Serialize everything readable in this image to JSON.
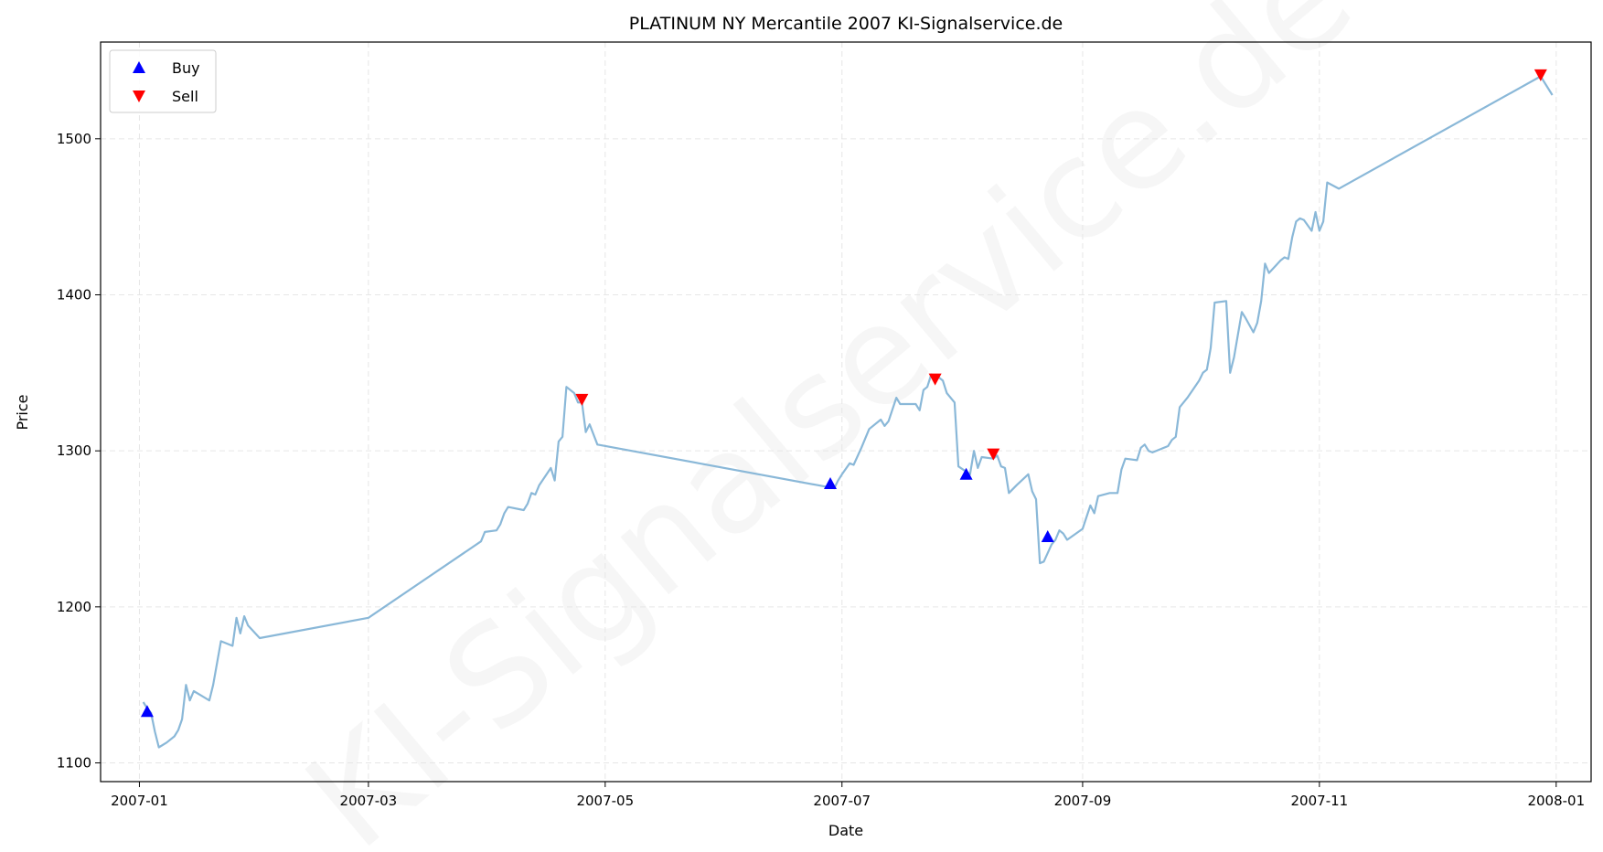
{
  "chart_data": {
    "type": "line",
    "title": "PLATINUM NY Mercantile 2007 KI-Signalservice.de",
    "xlabel": "Date",
    "ylabel": "Price",
    "watermark": "KI-Signalservice.de",
    "x_range": [
      "2006-12-22",
      "2008-01-10"
    ],
    "ylim": [
      1088,
      1562
    ],
    "x_ticks": [
      {
        "date": "2007-01-01",
        "label": "2007-01"
      },
      {
        "date": "2007-03-01",
        "label": "2007-03"
      },
      {
        "date": "2007-05-01",
        "label": "2007-05"
      },
      {
        "date": "2007-07-01",
        "label": "2007-07"
      },
      {
        "date": "2007-09-01",
        "label": "2007-09"
      },
      {
        "date": "2007-11-01",
        "label": "2007-11"
      },
      {
        "date": "2008-01-01",
        "label": "2008-01"
      }
    ],
    "y_ticks": [
      1100,
      1200,
      1300,
      1400,
      1500
    ],
    "grid": true,
    "legend": {
      "position": "top-left",
      "entries": [
        "Buy",
        "Sell"
      ]
    },
    "colors": {
      "line": "#8ab8d8",
      "buy": "#0000ff",
      "sell": "#ff0000",
      "grid": "#e6e6e6"
    },
    "series": [
      {
        "name": "Price",
        "points": [
          [
            "2007-01-02",
            1139
          ],
          [
            "2007-01-03",
            1135
          ],
          [
            "2007-01-04",
            1132
          ],
          [
            "2007-01-05",
            1120
          ],
          [
            "2007-01-06",
            1110
          ],
          [
            "2007-01-08",
            1113
          ],
          [
            "2007-01-10",
            1117
          ],
          [
            "2007-01-11",
            1121
          ],
          [
            "2007-01-12",
            1128
          ],
          [
            "2007-01-13",
            1150
          ],
          [
            "2007-01-14",
            1140
          ],
          [
            "2007-01-15",
            1146
          ],
          [
            "2007-01-17",
            1143
          ],
          [
            "2007-01-19",
            1140
          ],
          [
            "2007-01-20",
            1150
          ],
          [
            "2007-01-22",
            1178
          ],
          [
            "2007-01-25",
            1175
          ],
          [
            "2007-01-26",
            1193
          ],
          [
            "2007-01-27",
            1183
          ],
          [
            "2007-01-28",
            1194
          ],
          [
            "2007-01-29",
            1188
          ],
          [
            "2007-02-01",
            1180
          ],
          [
            "2007-03-01",
            1193
          ],
          [
            "2007-03-30",
            1242
          ],
          [
            "2007-03-31",
            1248
          ],
          [
            "2007-04-03",
            1249
          ],
          [
            "2007-04-04",
            1253
          ],
          [
            "2007-04-05",
            1260
          ],
          [
            "2007-04-06",
            1264
          ],
          [
            "2007-04-10",
            1262
          ],
          [
            "2007-04-11",
            1266
          ],
          [
            "2007-04-12",
            1273
          ],
          [
            "2007-04-13",
            1272
          ],
          [
            "2007-04-14",
            1278
          ],
          [
            "2007-04-17",
            1289
          ],
          [
            "2007-04-18",
            1281
          ],
          [
            "2007-04-19",
            1306
          ],
          [
            "2007-04-20",
            1309
          ],
          [
            "2007-04-21",
            1341
          ],
          [
            "2007-04-23",
            1337
          ],
          [
            "2007-04-24",
            1331
          ],
          [
            "2007-04-25",
            1331
          ],
          [
            "2007-04-26",
            1312
          ],
          [
            "2007-04-27",
            1317
          ],
          [
            "2007-04-29",
            1304
          ],
          [
            "2007-06-29",
            1276
          ],
          [
            "2007-06-30",
            1281
          ],
          [
            "2007-07-01",
            1285
          ],
          [
            "2007-07-03",
            1292
          ],
          [
            "2007-07-04",
            1291
          ],
          [
            "2007-07-06",
            1302
          ],
          [
            "2007-07-08",
            1314
          ],
          [
            "2007-07-11",
            1320
          ],
          [
            "2007-07-12",
            1316
          ],
          [
            "2007-07-13",
            1319
          ],
          [
            "2007-07-15",
            1334
          ],
          [
            "2007-07-16",
            1330
          ],
          [
            "2007-07-20",
            1330
          ],
          [
            "2007-07-21",
            1326
          ],
          [
            "2007-07-22",
            1339
          ],
          [
            "2007-07-23",
            1341
          ],
          [
            "2007-07-24",
            1349
          ],
          [
            "2007-07-26",
            1347
          ],
          [
            "2007-07-27",
            1345
          ],
          [
            "2007-07-28",
            1337
          ],
          [
            "2007-07-30",
            1331
          ],
          [
            "2007-07-31",
            1290
          ],
          [
            "2007-08-03",
            1285
          ],
          [
            "2007-08-04",
            1300
          ],
          [
            "2007-08-05",
            1289
          ],
          [
            "2007-08-06",
            1296
          ],
          [
            "2007-08-09",
            1295
          ],
          [
            "2007-08-10",
            1297
          ],
          [
            "2007-08-11",
            1290
          ],
          [
            "2007-08-12",
            1289
          ],
          [
            "2007-08-13",
            1273
          ],
          [
            "2007-08-15",
            1278
          ],
          [
            "2007-08-18",
            1285
          ],
          [
            "2007-08-19",
            1274
          ],
          [
            "2007-08-20",
            1269
          ],
          [
            "2007-08-21",
            1228
          ],
          [
            "2007-08-22",
            1229
          ],
          [
            "2007-08-24",
            1240
          ],
          [
            "2007-08-25",
            1243
          ],
          [
            "2007-08-26",
            1249
          ],
          [
            "2007-08-27",
            1247
          ],
          [
            "2007-08-28",
            1243
          ],
          [
            "2007-09-01",
            1250
          ],
          [
            "2007-09-03",
            1265
          ],
          [
            "2007-09-04",
            1260
          ],
          [
            "2007-09-05",
            1271
          ],
          [
            "2007-09-08",
            1273
          ],
          [
            "2007-09-10",
            1273
          ],
          [
            "2007-09-11",
            1288
          ],
          [
            "2007-09-12",
            1295
          ],
          [
            "2007-09-15",
            1294
          ],
          [
            "2007-09-16",
            1302
          ],
          [
            "2007-09-17",
            1304
          ],
          [
            "2007-09-18",
            1300
          ],
          [
            "2007-09-19",
            1299
          ],
          [
            "2007-09-23",
            1303
          ],
          [
            "2007-09-24",
            1307
          ],
          [
            "2007-09-25",
            1309
          ],
          [
            "2007-09-26",
            1328
          ],
          [
            "2007-09-28",
            1334
          ],
          [
            "2007-10-01",
            1345
          ],
          [
            "2007-10-02",
            1350
          ],
          [
            "2007-10-03",
            1352
          ],
          [
            "2007-10-04",
            1366
          ],
          [
            "2007-10-05",
            1395
          ],
          [
            "2007-10-08",
            1396
          ],
          [
            "2007-10-09",
            1350
          ],
          [
            "2007-10-10",
            1360
          ],
          [
            "2007-10-12",
            1389
          ],
          [
            "2007-10-13",
            1385
          ],
          [
            "2007-10-15",
            1376
          ],
          [
            "2007-10-16",
            1382
          ],
          [
            "2007-10-17",
            1396
          ],
          [
            "2007-10-18",
            1420
          ],
          [
            "2007-10-19",
            1414
          ],
          [
            "2007-10-22",
            1422
          ],
          [
            "2007-10-23",
            1424
          ],
          [
            "2007-10-24",
            1423
          ],
          [
            "2007-10-25",
            1437
          ],
          [
            "2007-10-26",
            1447
          ],
          [
            "2007-10-27",
            1449
          ],
          [
            "2007-10-28",
            1448
          ],
          [
            "2007-10-30",
            1441
          ],
          [
            "2007-10-31",
            1453
          ],
          [
            "2007-11-01",
            1441
          ],
          [
            "2007-11-02",
            1447
          ],
          [
            "2007-11-03",
            1472
          ],
          [
            "2007-11-06",
            1468
          ],
          [
            "2007-12-28",
            1540
          ],
          [
            "2007-12-31",
            1528
          ]
        ]
      }
    ],
    "signals": [
      {
        "type": "Buy",
        "date": "2007-01-03",
        "price": 1133
      },
      {
        "type": "Sell",
        "date": "2007-04-25",
        "price": 1333
      },
      {
        "type": "Buy",
        "date": "2007-06-28",
        "price": 1279
      },
      {
        "type": "Sell",
        "date": "2007-07-25",
        "price": 1346
      },
      {
        "type": "Buy",
        "date": "2007-08-02",
        "price": 1285
      },
      {
        "type": "Sell",
        "date": "2007-08-09",
        "price": 1298
      },
      {
        "type": "Buy",
        "date": "2007-08-23",
        "price": 1245
      },
      {
        "type": "Sell",
        "date": "2007-12-28",
        "price": 1541
      }
    ]
  }
}
